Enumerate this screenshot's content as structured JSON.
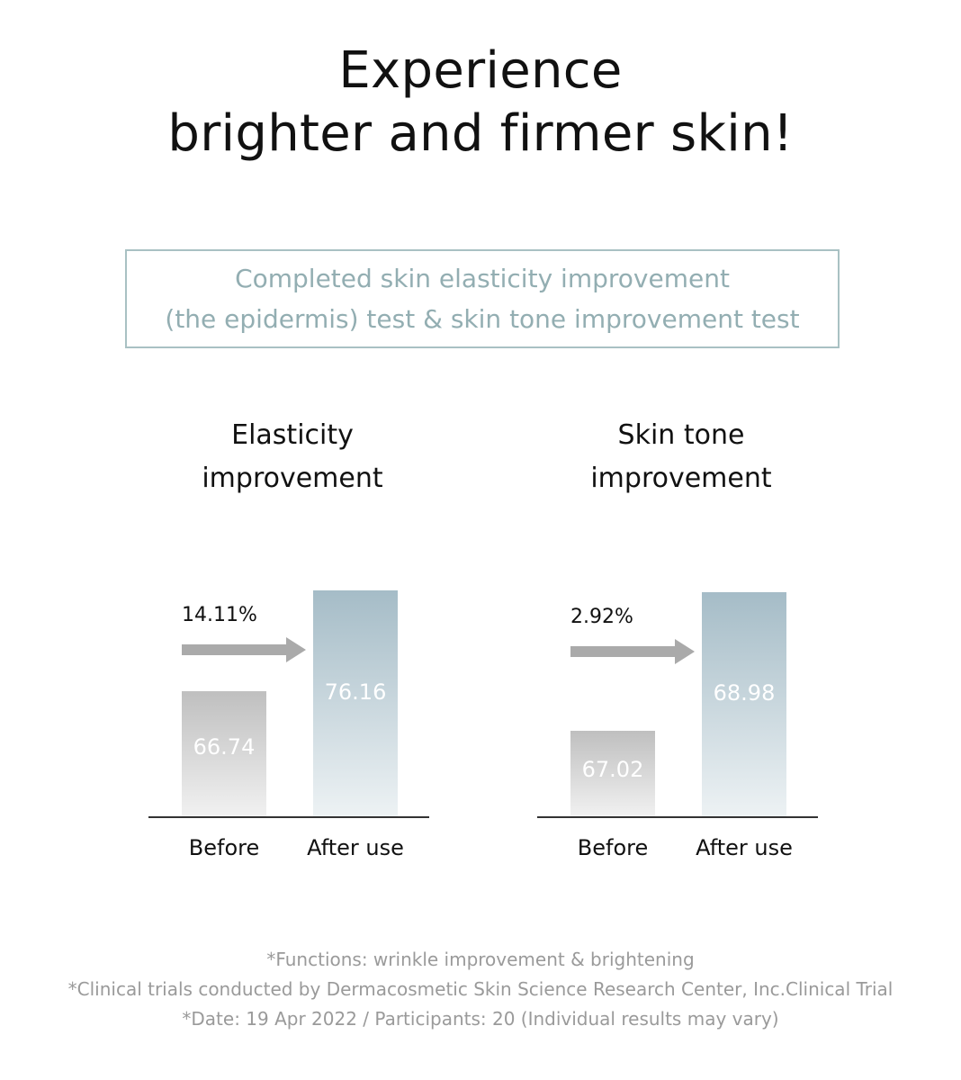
{
  "headline": {
    "line1": "Experience",
    "line2": "brighter and firmer skin!"
  },
  "notice": {
    "line1": "Completed skin elasticity improvement",
    "line2": "(the epidermis) test & skin tone improvement test"
  },
  "colors": {
    "before_top": "#bfbfbf",
    "after_top": "#a5bcc7",
    "notice_text": "#93aeb2",
    "arrow": "#aaaaaa"
  },
  "chart_data": [
    {
      "type": "bar",
      "title": [
        "Elasticity",
        "improvement"
      ],
      "categories": [
        "Before",
        "After use"
      ],
      "values": [
        66.74,
        76.16
      ],
      "increase_label": "14.11%",
      "ylim": [
        55,
        80
      ]
    },
    {
      "type": "bar",
      "title": [
        "Skin tone",
        "improvement"
      ],
      "categories": [
        "Before",
        "After use"
      ],
      "values": [
        67.02,
        68.98
      ],
      "increase_label": "2.92%",
      "ylim": [
        65.8,
        69.6
      ]
    }
  ],
  "footnotes": [
    "*Functions: wrinkle improvement & brightening",
    "*Clinical trials conducted by Dermacosmetic Skin Science Research Center, Inc.Clinical Trial",
    "*Date: 19 Apr 2022 / Participants: 20 (Individual results may vary)"
  ]
}
